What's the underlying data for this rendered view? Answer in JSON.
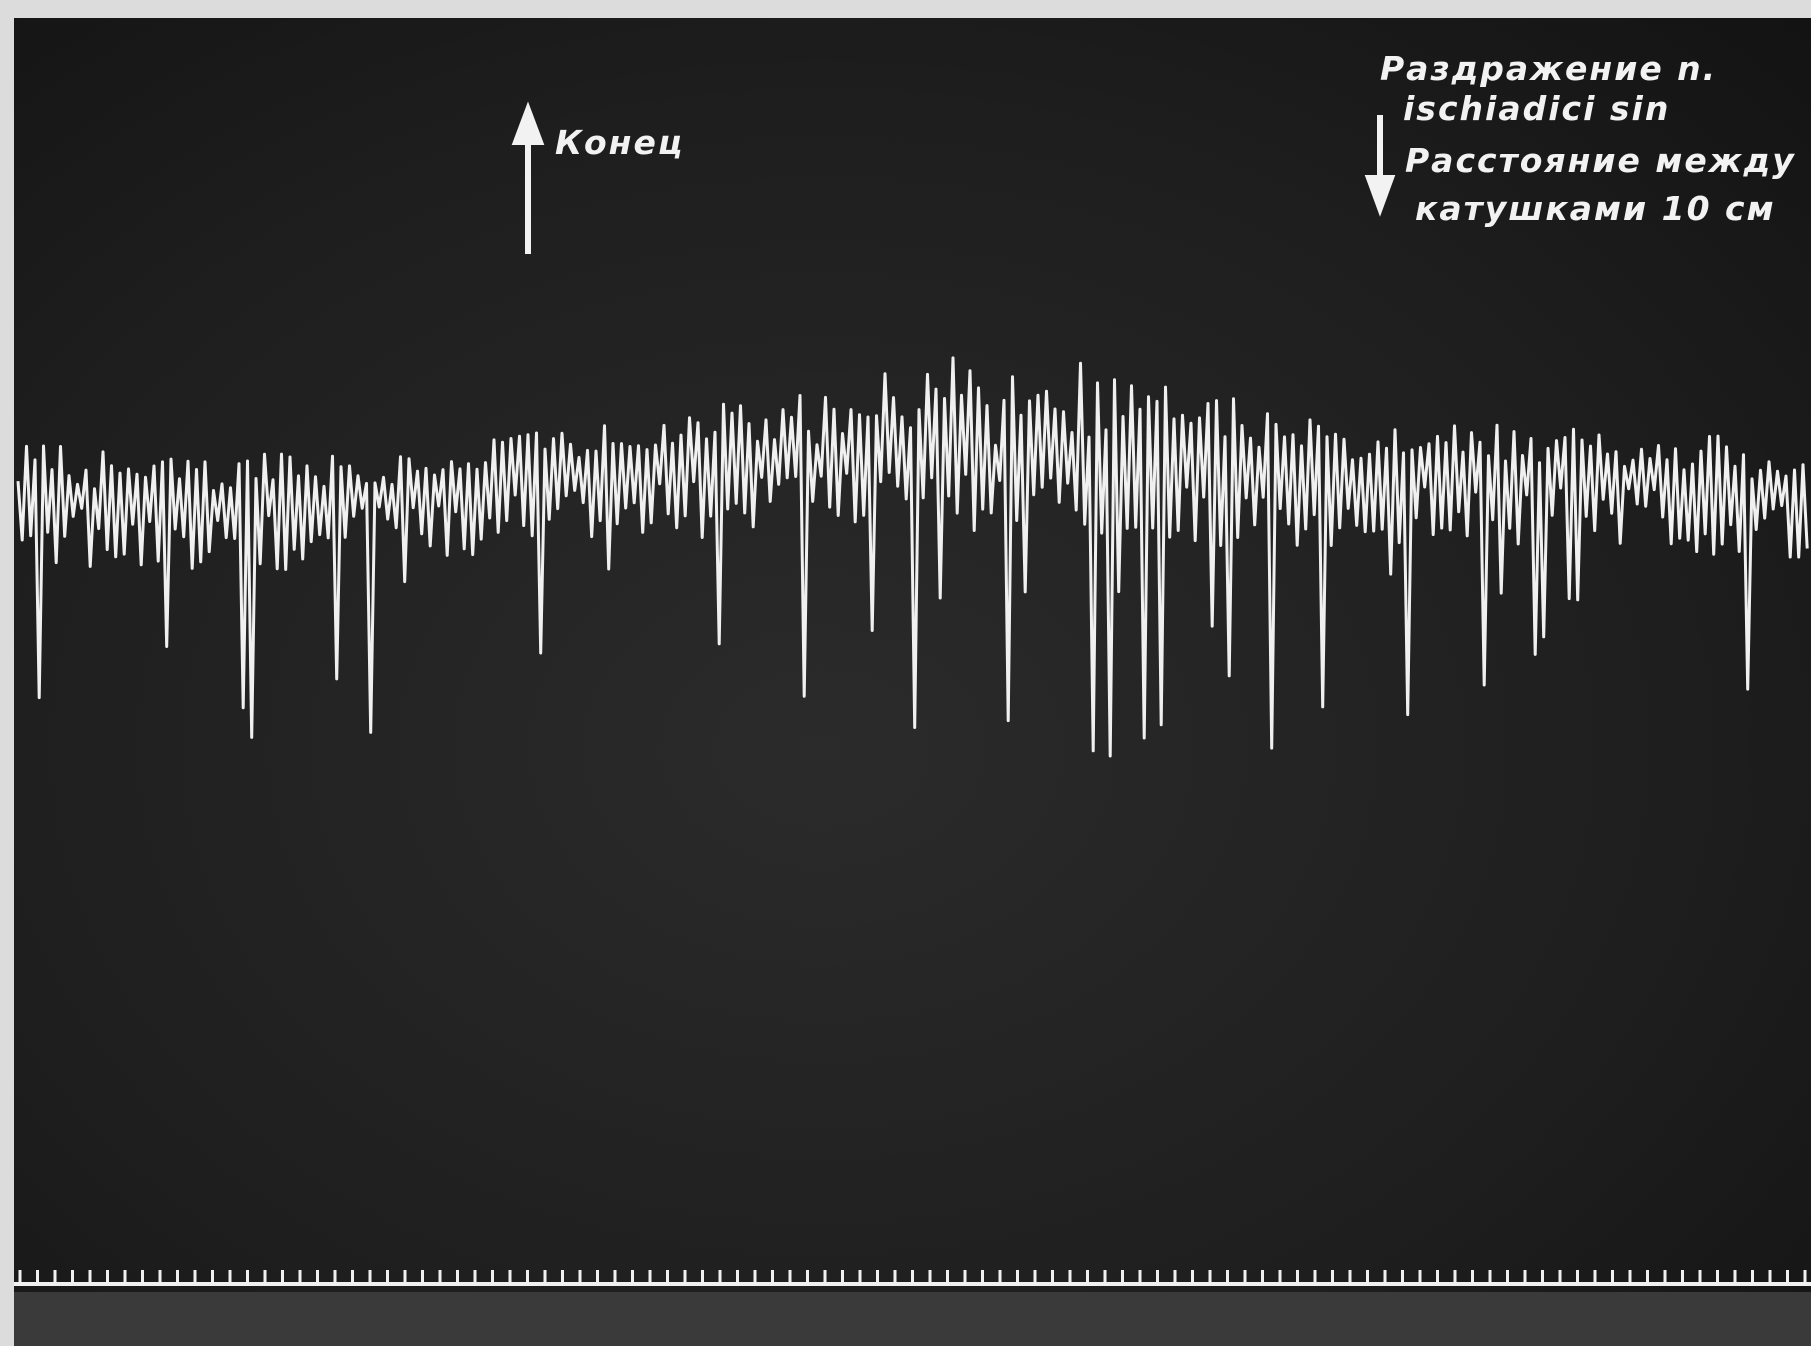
{
  "annotations": {
    "end_label": "Конец",
    "stimulation": [
      "Раздражение n.",
      "ischiadici sin"
    ],
    "distance": [
      "Расстояние между",
      "катушками 10 см"
    ]
  }
}
